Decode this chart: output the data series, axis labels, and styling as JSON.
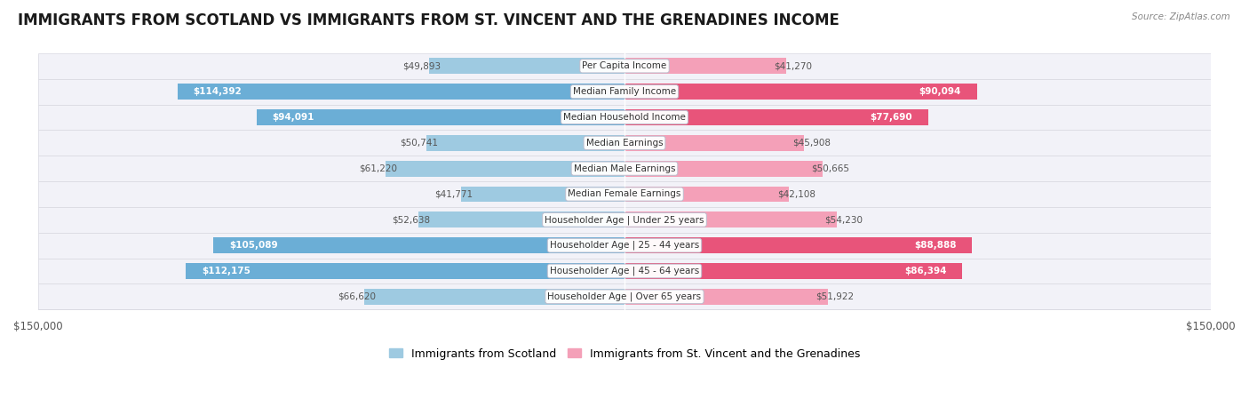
{
  "title": "IMMIGRANTS FROM SCOTLAND VS IMMIGRANTS FROM ST. VINCENT AND THE GRENADINES INCOME",
  "source": "Source: ZipAtlas.com",
  "categories": [
    "Per Capita Income",
    "Median Family Income",
    "Median Household Income",
    "Median Earnings",
    "Median Male Earnings",
    "Median Female Earnings",
    "Householder Age | Under 25 years",
    "Householder Age | 25 - 44 years",
    "Householder Age | 45 - 64 years",
    "Householder Age | Over 65 years"
  ],
  "scotland_values": [
    49893,
    114392,
    94091,
    50741,
    61220,
    41771,
    52638,
    105089,
    112175,
    66620
  ],
  "stvincent_values": [
    41270,
    90094,
    77690,
    45908,
    50665,
    42108,
    54230,
    88888,
    86394,
    51922
  ],
  "scotland_color_large": "#6baed6",
  "scotland_color_small": "#9ecae1",
  "stvincent_color_large": "#e8547a",
  "stvincent_color_small": "#f4a0b8",
  "row_bg_even": "#f0f0f5",
  "row_bg_odd": "#fafafa",
  "row_edge_color": "#d8d8e0",
  "max_value": 150000,
  "inside_threshold": 75000,
  "scotland_legend": "Immigrants from Scotland",
  "stvincent_legend": "Immigrants from St. Vincent and the Grenadines",
  "title_fontsize": 12,
  "category_fontsize": 7.5,
  "value_fontsize": 7.5,
  "legend_fontsize": 9,
  "bar_height": 0.62
}
